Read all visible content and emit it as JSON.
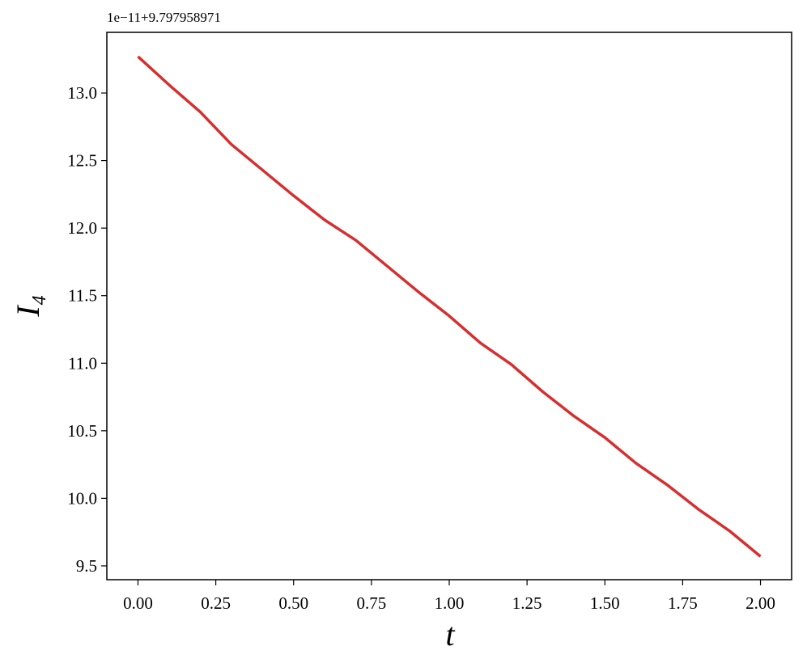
{
  "chart_data": {
    "type": "line",
    "offset_text": "1e−11+9.797958971",
    "xlabel": "t",
    "ylabel": "I₄",
    "x": [
      0,
      0.1,
      0.2,
      0.3,
      0.4,
      0.5,
      0.6,
      0.7,
      0.8,
      0.9,
      1.0,
      1.1,
      1.2,
      1.3,
      1.4,
      1.5,
      1.6,
      1.7,
      1.8,
      1.9,
      2.0
    ],
    "series": [
      {
        "color": "#d62f2f",
        "values": [
          13.27,
          13.06,
          12.86,
          12.62,
          12.43,
          12.24,
          12.06,
          11.91,
          11.72,
          11.53,
          11.35,
          11.15,
          10.99,
          10.79,
          10.61,
          10.45,
          10.26,
          10.1,
          9.92,
          9.76,
          9.57
        ]
      }
    ],
    "xlim": [
      -0.1,
      2.1
    ],
    "ylim": [
      9.398,
      13.449
    ],
    "xticks": [
      {
        "value": 0,
        "label": "0.00"
      },
      {
        "value": 0.25,
        "label": "0.25"
      },
      {
        "value": 0.5,
        "label": "0.50"
      },
      {
        "value": 0.75,
        "label": "0.75"
      },
      {
        "value": 1,
        "label": "1.00"
      },
      {
        "value": 1.25,
        "label": "1.25"
      },
      {
        "value": 1.5,
        "label": "1.50"
      },
      {
        "value": 1.75,
        "label": "1.75"
      },
      {
        "value": 2,
        "label": "2.00"
      }
    ],
    "yticks": [
      9.5,
      {
        "value": 10,
        "label": "10.0"
      },
      10.5,
      {
        "value": 11,
        "label": "11.0"
      },
      11.5,
      {
        "value": 12,
        "label": "12.0"
      },
      12.5,
      {
        "value": 13,
        "label": "13.0"
      }
    ],
    "grid": false
  }
}
